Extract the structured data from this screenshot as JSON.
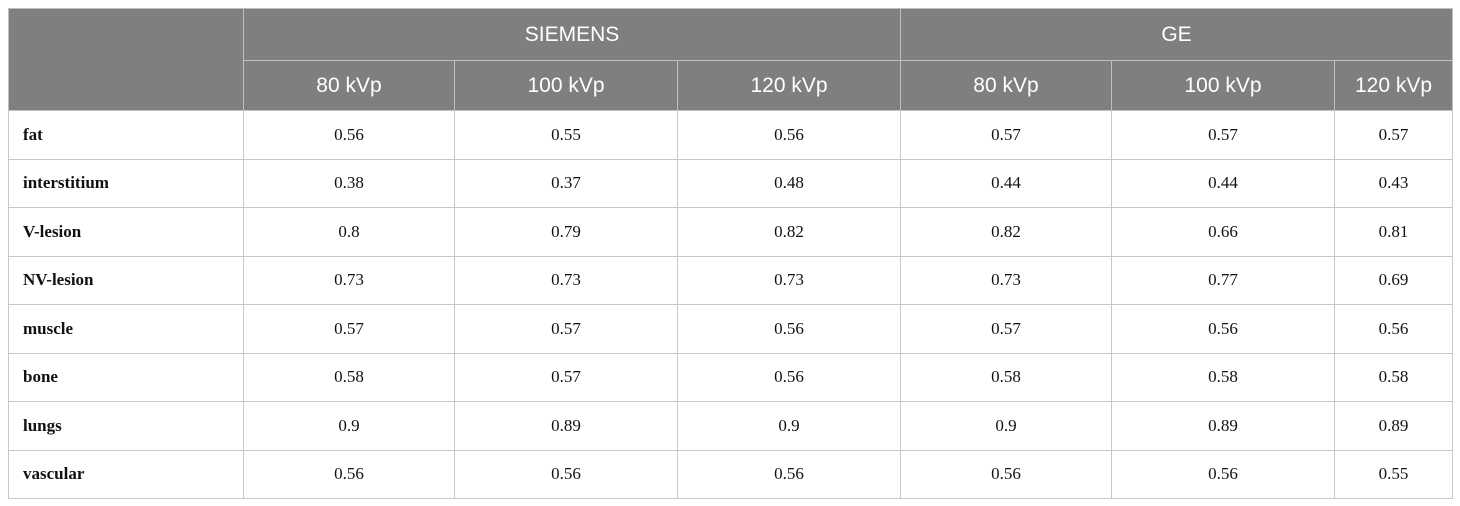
{
  "table": {
    "groups": [
      "SIEMENS",
      "GE"
    ],
    "subheaders": [
      "80 kVp",
      "100 kVp",
      "120 kVp",
      "80 kVp",
      "100 kVp",
      "120 kVp"
    ],
    "rows": [
      [
        "fat",
        "0.56",
        "0.55",
        "0.56",
        "0.57",
        "0.57",
        "0.57"
      ],
      [
        "interstitium",
        "0.38",
        "0.37",
        "0.48",
        "0.44",
        "0.44",
        "0.43"
      ],
      [
        "V-lesion",
        "0.8",
        "0.79",
        "0.82",
        "0.82",
        "0.66",
        "0.81"
      ],
      [
        "NV-lesion",
        "0.73",
        "0.73",
        "0.73",
        "0.73",
        "0.77",
        "0.69"
      ],
      [
        "muscle",
        "0.57",
        "0.57",
        "0.56",
        "0.57",
        "0.56",
        "0.56"
      ],
      [
        "bone",
        "0.58",
        "0.57",
        "0.56",
        "0.58",
        "0.58",
        "0.58"
      ],
      [
        "lungs",
        "0.9",
        "0.89",
        "0.9",
        "0.9",
        "0.89",
        "0.89"
      ],
      [
        "vascular",
        "0.56",
        "0.56",
        "0.56",
        "0.56",
        "0.56",
        "0.55"
      ]
    ]
  }
}
